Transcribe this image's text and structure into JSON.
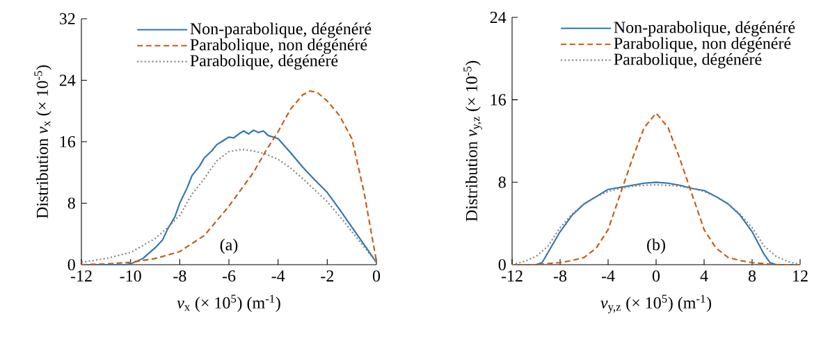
{
  "chart_data": [
    {
      "type": "line",
      "xlabel": "*v*$_{x}$ (× 10$^{5}$) (m$^{-1}$)",
      "ylabel": "Distribution *v*$_{x}$ (× 10$^{-5}$)",
      "annotations": [
        "(a)"
      ],
      "xlim": [
        -12,
        0
      ],
      "xticks": [
        -12,
        -10,
        -8,
        -6,
        -4,
        -2,
        0
      ],
      "ylim": [
        0,
        32
      ],
      "yticks": [
        0,
        8,
        16,
        24,
        32
      ],
      "legend": "top right",
      "marker": "none",
      "grid": false,
      "series": [
        {
          "name": "Non-parabolique, dégénéré",
          "color": "#2e75b6",
          "line_style": "solid",
          "x": [
            -12,
            -11,
            -10.2,
            -10,
            -9.5,
            -9,
            -8.7,
            -8.5,
            -8.2,
            -8,
            -7.7,
            -7.5,
            -7.2,
            -7,
            -6.7,
            -6.5,
            -6.2,
            -6,
            -5.8,
            -5.6,
            -5.4,
            -5.2,
            -5,
            -4.8,
            -4.6,
            -4.4,
            -4,
            -3.5,
            -3,
            -2.5,
            -2,
            -1.5,
            -1,
            -0.5,
            0
          ],
          "values": [
            0,
            0,
            0,
            0.1,
            0.8,
            2.2,
            3.2,
            4.6,
            6.2,
            8,
            10,
            11.6,
            12.8,
            13.9,
            14.8,
            15.6,
            16.2,
            16.6,
            16.5,
            17.0,
            17.4,
            17.0,
            17.5,
            17.2,
            17.4,
            16.8,
            16.4,
            14.6,
            12.7,
            11.0,
            9.4,
            7.2,
            4.9,
            2.6,
            0.3
          ]
        },
        {
          "name": "Parabolique, non dégénéré",
          "color": "#c55a11",
          "line_style": "dashed",
          "x": [
            -12,
            -11,
            -10,
            -9,
            -8,
            -7,
            -6,
            -5,
            -4.5,
            -4,
            -3.5,
            -3,
            -2.7,
            -2.4,
            -2,
            -1.5,
            -1,
            -0.5,
            -0.2,
            0
          ],
          "values": [
            0,
            0.1,
            0.3,
            0.8,
            1.7,
            3.8,
            7.6,
            12,
            14.8,
            17.3,
            20.2,
            22.1,
            22.6,
            22.4,
            21.3,
            19.4,
            16.4,
            9.4,
            4,
            0.5
          ]
        },
        {
          "name": "Parabolique, dégénéré",
          "color": "#808080",
          "line_style": "dotted",
          "x": [
            -12,
            -11,
            -10,
            -9,
            -8.5,
            -8,
            -7.5,
            -7,
            -6.5,
            -6,
            -5.5,
            -5,
            -4.5,
            -4,
            -3.5,
            -3,
            -2.5,
            -2,
            -1.5,
            -1,
            -0.5,
            0
          ],
          "values": [
            0.3,
            0.8,
            1.6,
            3.4,
            4.8,
            6.4,
            9.2,
            11.2,
            13.5,
            14.7,
            15.0,
            14.8,
            14.4,
            13.7,
            12.6,
            11.2,
            9.7,
            8.2,
            6.3,
            4.3,
            2.3,
            0.3
          ]
        }
      ]
    },
    {
      "type": "line",
      "xlabel": "*v*$_{y,z}$ (× 10$^{5}$) (m$^{-1}$)",
      "ylabel": "Distribution *v*$_{y,z}$ (× 10$^{-5}$)",
      "annotations": [
        "(b)"
      ],
      "xlim": [
        -12,
        12
      ],
      "xticks": [
        -12,
        -8,
        -4,
        0,
        4,
        8,
        12
      ],
      "ylim": [
        0,
        24
      ],
      "yticks": [
        0,
        8,
        16,
        24
      ],
      "legend": "top right",
      "marker": "none",
      "grid": false,
      "series": [
        {
          "name": "Non-parabolique, dégénéré",
          "color": "#2e75b6",
          "line_style": "solid",
          "x": [
            -12,
            -10,
            -9.5,
            -9,
            -8,
            -7,
            -6,
            -5,
            -4,
            -3,
            -2,
            -1,
            0,
            1,
            2,
            3,
            4,
            5,
            6,
            7,
            8,
            9,
            9.5,
            10,
            12
          ],
          "values": [
            0,
            0,
            0.2,
            1.2,
            3.2,
            4.8,
            5.9,
            6.6,
            7.3,
            7.5,
            7.7,
            7.9,
            8.0,
            7.9,
            7.7,
            7.4,
            7.2,
            6.6,
            5.9,
            4.8,
            3.2,
            1.0,
            0.2,
            0,
            0
          ]
        },
        {
          "name": "Parabolique, non dégénéré",
          "color": "#c55a11",
          "line_style": "dashed",
          "x": [
            -12,
            -10,
            -8,
            -7,
            -6,
            -5,
            -4,
            -3,
            -2,
            -1,
            0,
            1,
            2,
            3,
            4,
            5,
            6,
            7,
            8,
            10,
            12
          ],
          "values": [
            0,
            0,
            0.2,
            0.4,
            0.7,
            1.6,
            3.4,
            6.8,
            10.2,
            13.3,
            14.7,
            13.3,
            10.2,
            6.8,
            3.4,
            1.6,
            0.7,
            0.4,
            0.2,
            0,
            0
          ]
        },
        {
          "name": "Parabolique, dégénéré",
          "color": "#808080",
          "line_style": "dotted",
          "x": [
            -12,
            -11,
            -10,
            -9,
            -8,
            -7,
            -6,
            -5,
            -4,
            -3,
            -2,
            -1,
            0,
            1,
            2,
            3,
            4,
            5,
            6,
            7,
            8,
            9,
            10,
            11,
            12
          ],
          "values": [
            0,
            0.3,
            0.8,
            1.8,
            3.6,
            4.9,
            5.9,
            6.6,
            7.1,
            7.4,
            7.6,
            7.7,
            7.75,
            7.7,
            7.6,
            7.4,
            7.1,
            6.6,
            5.9,
            4.9,
            3.6,
            1.8,
            0.8,
            0.3,
            0
          ]
        }
      ]
    }
  ]
}
